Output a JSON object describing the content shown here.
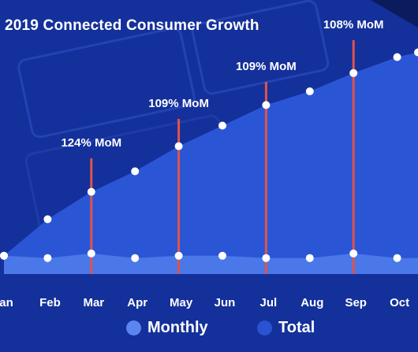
{
  "chart_data": {
    "type": "area",
    "title": "2019 Connected Consumer Growth",
    "categories": [
      "Jan",
      "Feb",
      "Mar",
      "Apr",
      "May",
      "Jun",
      "Jul",
      "Aug",
      "Sep",
      "Oct"
    ],
    "category_labels": [
      "an",
      "Feb",
      "Mar",
      "Apr",
      "May",
      "Jun",
      "Jul",
      "Aug",
      "Sep",
      "Oct"
    ],
    "series": [
      {
        "name": "Monthly",
        "values": [
          8,
          7,
          9,
          7,
          8,
          8,
          7,
          7,
          9,
          7
        ]
      },
      {
        "name": "Total",
        "values": [
          8,
          24,
          36,
          45,
          56,
          65,
          74,
          80,
          88,
          95
        ]
      }
    ],
    "annotations": [
      {
        "category": "Mar",
        "label": "124% MoM"
      },
      {
        "category": "May",
        "label": "109% MoM"
      },
      {
        "category": "Jul",
        "label": "109% MoM"
      },
      {
        "category": "Sep",
        "label": "108% MoM"
      }
    ],
    "ylim": [
      0,
      100
    ],
    "grid": false,
    "legend": "bottom"
  },
  "colors": {
    "background": "#14309a",
    "total_area": "#2a56d6",
    "monthly_area": "#4a78e8",
    "marker_line": "#e0534b",
    "point": "#ffffff",
    "text": "#ffffff",
    "legend_monthly": "#5b86f0",
    "legend_total": "#2b52d0"
  },
  "legend": {
    "monthly": "Monthly",
    "total": "Total"
  }
}
